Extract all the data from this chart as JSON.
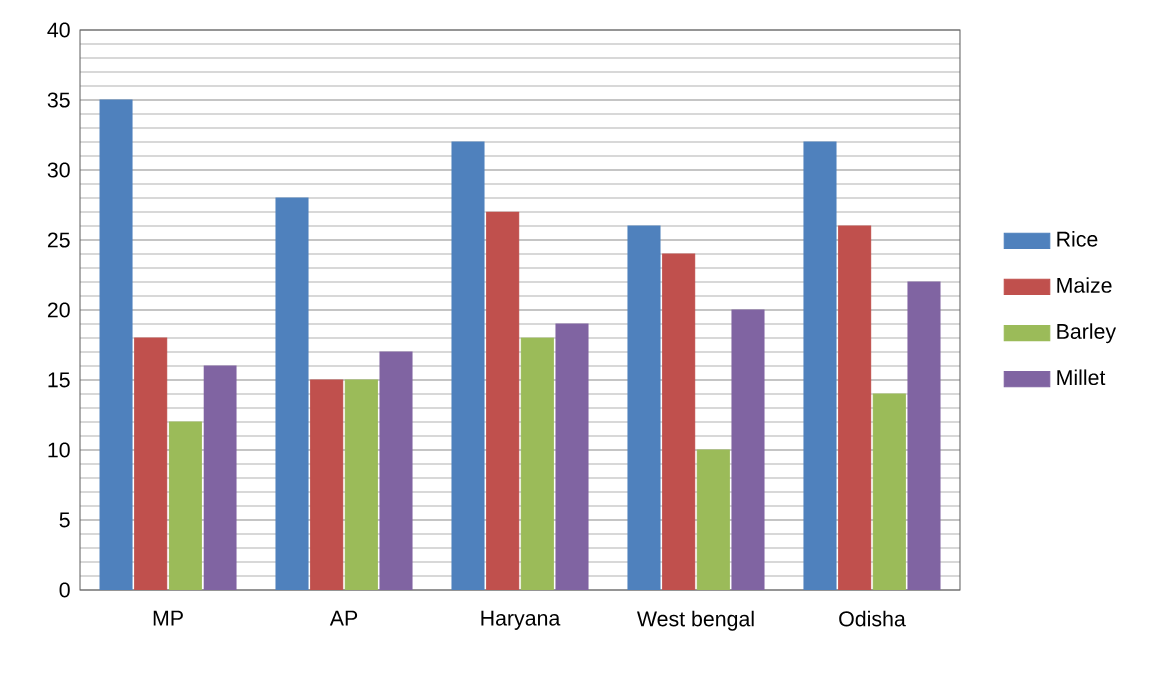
{
  "chart_data": {
    "type": "bar",
    "categories": [
      "MP",
      "AP",
      "Haryana",
      "West bengal",
      "Odisha"
    ],
    "series": [
      {
        "name": "Rice",
        "color": "#4f81bd",
        "values": [
          35,
          28,
          32,
          26,
          32
        ]
      },
      {
        "name": "Maize",
        "color": "#c0504d",
        "values": [
          18,
          15,
          27,
          24,
          26
        ]
      },
      {
        "name": "Barley",
        "color": "#9bbb59",
        "values": [
          12,
          15,
          18,
          10,
          14
        ]
      },
      {
        "name": "Millet",
        "color": "#8064a2",
        "values": [
          16,
          17,
          19,
          20,
          22
        ]
      }
    ],
    "ylim": [
      0,
      40
    ],
    "yticks": [
      0,
      5,
      10,
      15,
      20,
      25,
      30,
      35,
      40
    ],
    "grid": "y",
    "legend": "right"
  }
}
